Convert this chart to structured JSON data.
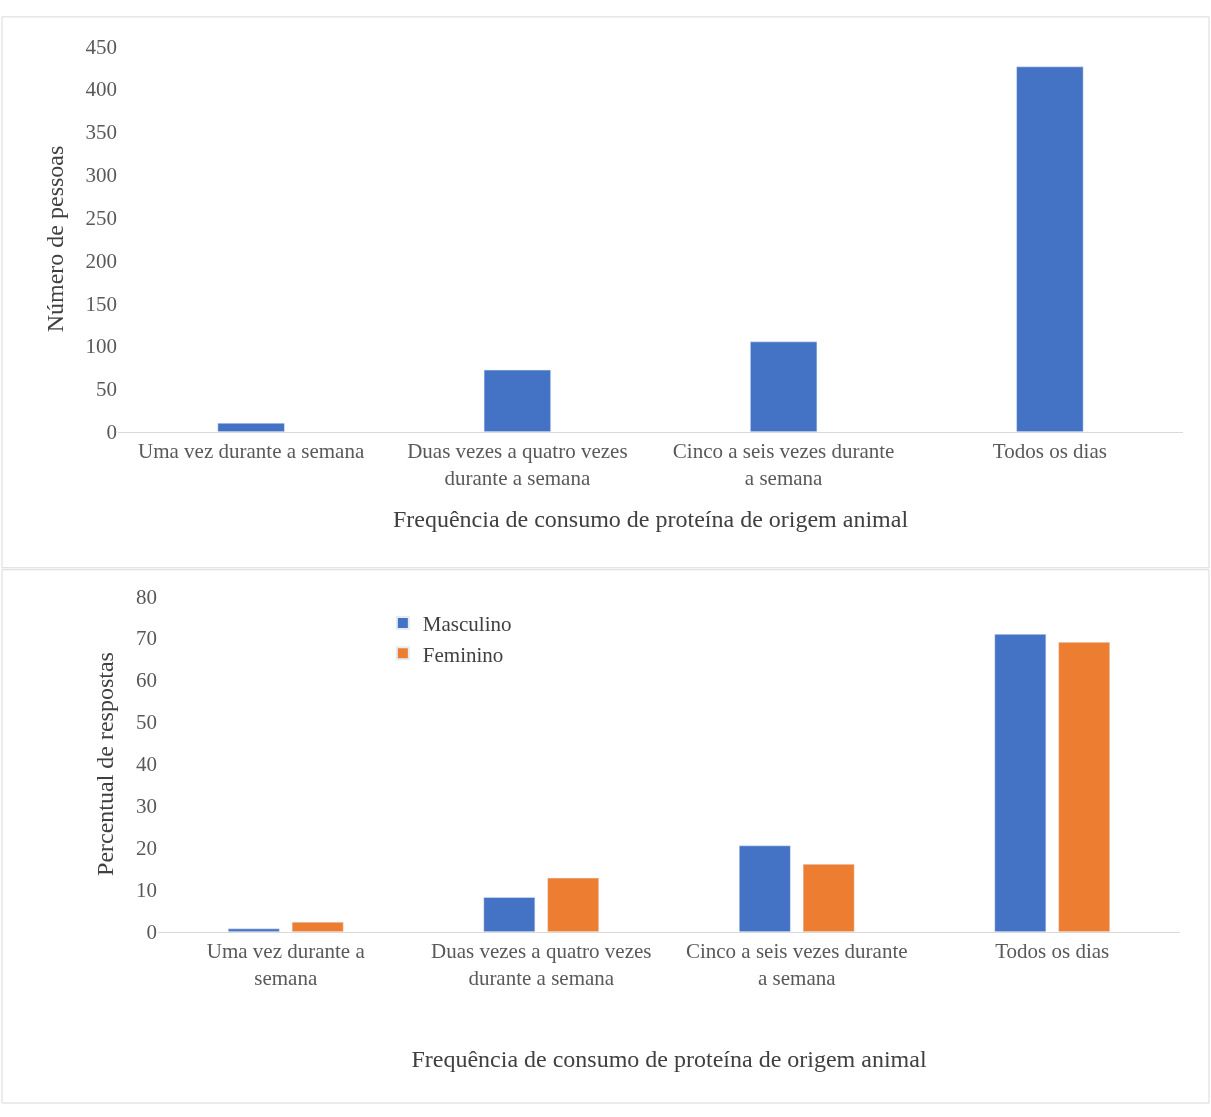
{
  "chart_data": [
    {
      "type": "bar",
      "xlabel": "Frequência de consumo de proteína de origem animal",
      "ylabel": "Número de pessoas",
      "categories": [
        "Uma vez durante a semana",
        "Duas vezes a quatro vezes durante a semana",
        "Cinco a seis vezes durante a semana",
        "Todos os dias"
      ],
      "series": [
        {
          "color": "#4472c4",
          "values": [
            10,
            72,
            105,
            426
          ]
        }
      ],
      "ylim": [
        0,
        450
      ],
      "yticks": [
        0,
        50,
        100,
        150,
        200,
        250,
        300,
        350,
        400,
        450
      ],
      "legend": false
    },
    {
      "type": "bar",
      "xlabel": "Frequência de consumo de proteína de origem animal",
      "ylabel": "Percentual de respostas",
      "categories": [
        "Uma vez durante a semana",
        "Duas vezes a quatro vezes durante a semana",
        "Cinco a seis vezes durante a semana",
        "Todos os dias"
      ],
      "series": [
        {
          "name": "Masculino",
          "color": "#4472c4",
          "values": [
            0.7,
            8.2,
            20.5,
            70.9
          ]
        },
        {
          "name": "Feminino",
          "color": "#ed7d31",
          "values": [
            2.3,
            12.8,
            16.1,
            69.0
          ]
        }
      ],
      "ylim": [
        0,
        80
      ],
      "yticks": [
        0,
        10,
        20,
        30,
        40,
        50,
        60,
        70,
        80
      ],
      "legend": "top left"
    }
  ]
}
